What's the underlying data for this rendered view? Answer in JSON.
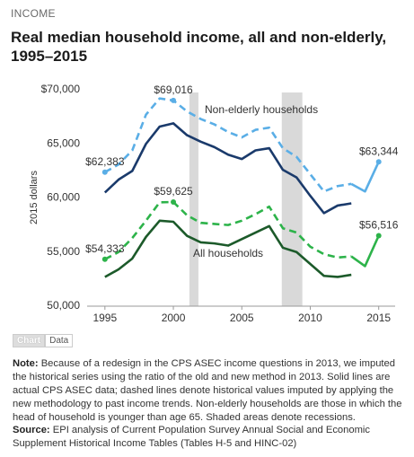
{
  "header": "INCOME",
  "chart_data": {
    "type": "line",
    "title": "Real median household income, all and non-elderly, 1995–2015",
    "y_label": "2015 dollars",
    "x": [
      1995,
      1996,
      1997,
      1998,
      1999,
      2000,
      2001,
      2002,
      2003,
      2004,
      2005,
      2006,
      2007,
      2008,
      2009,
      2010,
      2011,
      2012,
      2013,
      2014,
      2015
    ],
    "xlim": [
      1993.7,
      2016.2
    ],
    "xticks": [
      1995,
      2000,
      2005,
      2010,
      2015
    ],
    "ylim": [
      50000,
      70000
    ],
    "yticks": [
      {
        "value": 50000,
        "label": "50,000"
      },
      {
        "value": 55000,
        "label": "55,000"
      },
      {
        "value": 60000,
        "label": "60,000"
      },
      {
        "value": 65000,
        "label": "65,000"
      },
      {
        "value": 70000,
        "label": "$70,000"
      }
    ],
    "recessions": [
      [
        2001.17,
        2001.83
      ],
      [
        2007.92,
        2009.42
      ]
    ],
    "recession_color": "#d9d9d9",
    "series": [
      {
        "name": "Non-elderly households",
        "color": "#5aaee6",
        "dashed": true,
        "values": [
          62383,
          63100,
          64400,
          67700,
          69200,
          69016,
          68000,
          67300,
          66800,
          66100,
          65600,
          66300,
          66500,
          64600,
          63800,
          62200,
          60600,
          61100,
          61300,
          null,
          null
        ],
        "value_labels": [
          "$62,383",
          null,
          null,
          null,
          null,
          "$69,016",
          null,
          null,
          null,
          null,
          null,
          null,
          null,
          null,
          null,
          null,
          null,
          null,
          null,
          null,
          null
        ]
      },
      {
        "color": "#5aaee6",
        "dashed": false,
        "values": [
          null,
          null,
          null,
          null,
          null,
          null,
          null,
          null,
          null,
          null,
          null,
          null,
          null,
          null,
          null,
          null,
          null,
          null,
          61300,
          60600,
          63344
        ],
        "value_labels": [
          null,
          null,
          null,
          null,
          null,
          null,
          null,
          null,
          null,
          null,
          null,
          null,
          null,
          null,
          null,
          null,
          null,
          null,
          null,
          null,
          "$63,344"
        ]
      },
      {
        "color": "#1a3a6b",
        "dashed": false,
        "values": [
          60500,
          61700,
          62500,
          65000,
          66600,
          66900,
          65800,
          65200,
          64700,
          64000,
          63600,
          64400,
          64600,
          62600,
          61900,
          60200,
          58600,
          59300,
          59500,
          null,
          null
        ]
      },
      {
        "name": "All households",
        "color": "#2db34a",
        "dashed": true,
        "values": [
          54333,
          55000,
          56300,
          57900,
          59600,
          59625,
          58400,
          57700,
          57600,
          57500,
          57900,
          58500,
          59200,
          57200,
          56800,
          55500,
          54800,
          54500,
          54600,
          null,
          null
        ],
        "value_labels": [
          "$54,333",
          null,
          null,
          null,
          null,
          "$59,625",
          null,
          null,
          null,
          null,
          null,
          null,
          null,
          null,
          null,
          null,
          null,
          null,
          null,
          null,
          null
        ]
      },
      {
        "color": "#2db34a",
        "dashed": false,
        "values": [
          null,
          null,
          null,
          null,
          null,
          null,
          null,
          null,
          null,
          null,
          null,
          null,
          null,
          null,
          null,
          null,
          null,
          null,
          54600,
          53700,
          56516
        ],
        "value_labels": [
          null,
          null,
          null,
          null,
          null,
          null,
          null,
          null,
          null,
          null,
          null,
          null,
          null,
          null,
          null,
          null,
          null,
          null,
          null,
          null,
          "$56,516"
        ]
      },
      {
        "color": "#1c5a2a",
        "dashed": false,
        "values": [
          52700,
          53400,
          54400,
          56400,
          57900,
          57800,
          56500,
          55900,
          55800,
          55600,
          56200,
          56800,
          57400,
          55400,
          55000,
          53900,
          52800,
          52700,
          52900,
          null,
          null
        ]
      }
    ]
  },
  "tabs": [
    "Chart",
    "Data"
  ],
  "note": {
    "label": "Note:",
    "text": "Because of a redesign in the CPS ASEC income questions in 2013, we imputed the historical series using the ratio of the old and new method in 2013. Solid lines are actual CPS ASEC data; dashed lines denote historical values imputed by applying the new methodology to past income trends. Non-elderly households are those in which the head of household is younger than age 65. Shaded areas denote recessions."
  },
  "source": {
    "label": "Source:",
    "text": "EPI analysis of Current Population Survey Annual Social and Economic Supplement Historical Income Tables (Tables H-5 and HINC-02)"
  }
}
